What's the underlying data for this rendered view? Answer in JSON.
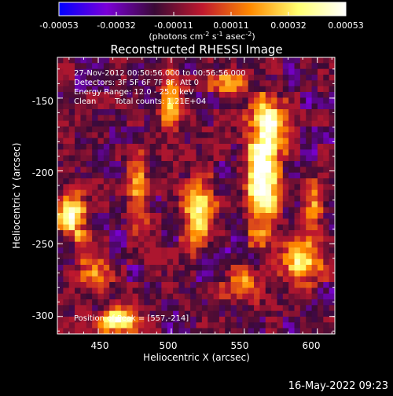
{
  "chart_data": {
    "type": "heatmap",
    "title": "Reconstructed RHESSI Image",
    "colorbar": {
      "ticks": [
        "-0.00053",
        "-0.00032",
        "-0.00011",
        "0.00011",
        "0.00032",
        "0.00053"
      ],
      "units_prefix": "(photons cm",
      "units_exp1": "-2",
      "units_mid": " s",
      "units_exp2": "-1",
      "units_mid2": " asec",
      "units_exp3": "-2",
      "units_suffix": ")",
      "colors": [
        "#0000ff",
        "#7b00d8",
        "#3a0a36",
        "#c0182e",
        "#ff8a00",
        "#ffff70",
        "#ffffff"
      ]
    },
    "xlabel": "Heliocentric X (arcsec)",
    "ylabel": "Heliocentric Y (arcsec)",
    "xticks": [
      "450",
      "500",
      "550",
      "600"
    ],
    "yticks": [
      "-150",
      "-200",
      "-250",
      "-300"
    ],
    "xlim": [
      422,
      612
    ],
    "ylim": [
      -312,
      -122
    ],
    "annotations": {
      "time_range": "27-Nov-2012 00:50:56.000 to 00:56:56.000",
      "detectors": "Detectors: 3F 5F 6F 7F 8F, Att 0",
      "energy": "Energy Range: 12.0 - 25.0 keV",
      "method": "Clean",
      "counts": "Total counts: 1.21E+04",
      "peak": "Position of Peak = [557,-214]"
    },
    "sources": [
      {
        "x": 562,
        "y": -205,
        "sx": 8,
        "sy": 24,
        "amp": 1.0
      },
      {
        "x": 567,
        "y": -168,
        "sx": 7,
        "sy": 13,
        "amp": 0.85
      },
      {
        "x": 519,
        "y": -230,
        "sx": 7,
        "sy": 16,
        "amp": 0.92
      },
      {
        "x": 433,
        "y": -232,
        "sx": 7,
        "sy": 10,
        "amp": 0.9
      },
      {
        "x": 463,
        "y": -302,
        "sx": 9,
        "sy": 7,
        "amp": 0.95
      },
      {
        "x": 590,
        "y": -262,
        "sx": 9,
        "sy": 10,
        "amp": 0.85
      },
      {
        "x": 500,
        "y": -150,
        "sx": 7,
        "sy": 12,
        "amp": 0.55
      },
      {
        "x": 478,
        "y": -215,
        "sx": 5,
        "sy": 15,
        "amp": 0.55
      },
      {
        "x": 445,
        "y": -272,
        "sx": 9,
        "sy": 7,
        "amp": 0.5
      },
      {
        "x": 550,
        "y": -280,
        "sx": 9,
        "sy": 9,
        "amp": 0.45
      },
      {
        "x": 598,
        "y": -225,
        "sx": 5,
        "sy": 12,
        "amp": 0.5
      },
      {
        "x": 540,
        "y": -140,
        "sx": 8,
        "sy": 8,
        "amp": 0.4
      }
    ]
  },
  "footer": {
    "date": "16-May-2022 09:23"
  }
}
